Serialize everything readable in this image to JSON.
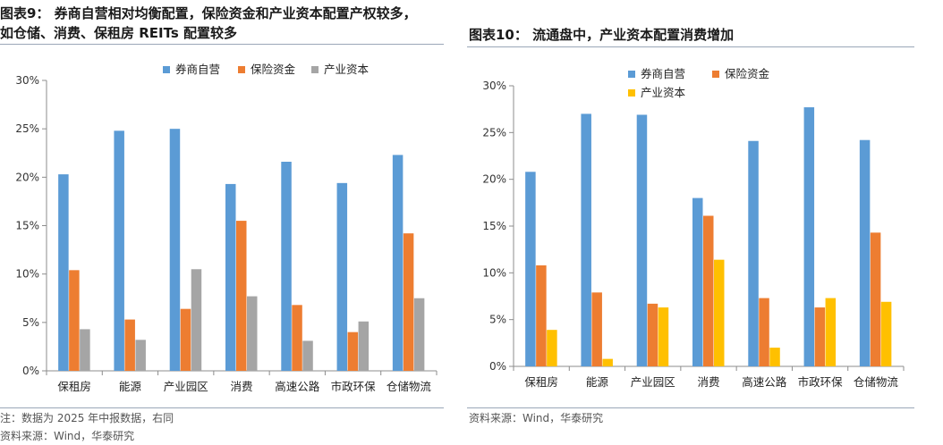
{
  "left": {
    "title_line1": "图表9：  券商自营相对均衡配置，保险资金和产业资本配置产权较多，",
    "title_line2": "如仓储、消费、保租房 REITs 配置较多",
    "note1": "注：数据为 2025 年中报数据，右同",
    "note2": "资料来源：Wind，华泰研究"
  },
  "right": {
    "title_line1": "图表10：  流通盘中，产业资本配置消费增加",
    "note1": "资料来源：Wind，华泰研究"
  },
  "colors": {
    "series1": "#5b9bd5",
    "series2": "#ed7d31",
    "series3_left": "#a5a5a5",
    "series3_right": "#ffc000"
  },
  "chart_data": [
    {
      "type": "bar",
      "categories": [
        "保租房",
        "能源",
        "产业园区",
        "消费",
        "高速公路",
        "市政环保",
        "仓储物流"
      ],
      "series": [
        {
          "name": "券商自营",
          "values": [
            20.3,
            24.8,
            25.0,
            19.3,
            21.6,
            19.4,
            22.3
          ]
        },
        {
          "name": "保险资金",
          "values": [
            10.4,
            5.3,
            6.4,
            15.5,
            6.8,
            4.0,
            14.2
          ]
        },
        {
          "name": "产业资本",
          "values": [
            4.3,
            3.2,
            10.5,
            7.7,
            3.1,
            5.1,
            7.5
          ]
        }
      ],
      "ylim": [
        0,
        30
      ],
      "yticks": [
        "0%",
        "5%",
        "10%",
        "15%",
        "20%",
        "25%",
        "30%"
      ],
      "legend": "top",
      "grid": false
    },
    {
      "type": "bar",
      "categories": [
        "保租房",
        "能源",
        "产业园区",
        "消费",
        "高速公路",
        "市政环保",
        "仓储物流"
      ],
      "series": [
        {
          "name": "券商自营",
          "values": [
            20.8,
            27.0,
            26.9,
            18.0,
            24.1,
            27.7,
            24.2
          ]
        },
        {
          "name": "保险资金",
          "values": [
            10.8,
            7.9,
            6.7,
            16.1,
            7.3,
            6.3,
            14.3
          ]
        },
        {
          "name": "产业资本",
          "values": [
            3.9,
            0.8,
            6.3,
            11.4,
            2.0,
            7.3,
            6.9
          ]
        }
      ],
      "ylim": [
        0,
        30
      ],
      "yticks": [
        "0%",
        "5%",
        "10%",
        "15%",
        "20%",
        "25%",
        "30%"
      ],
      "legend": "top",
      "grid": false
    }
  ]
}
